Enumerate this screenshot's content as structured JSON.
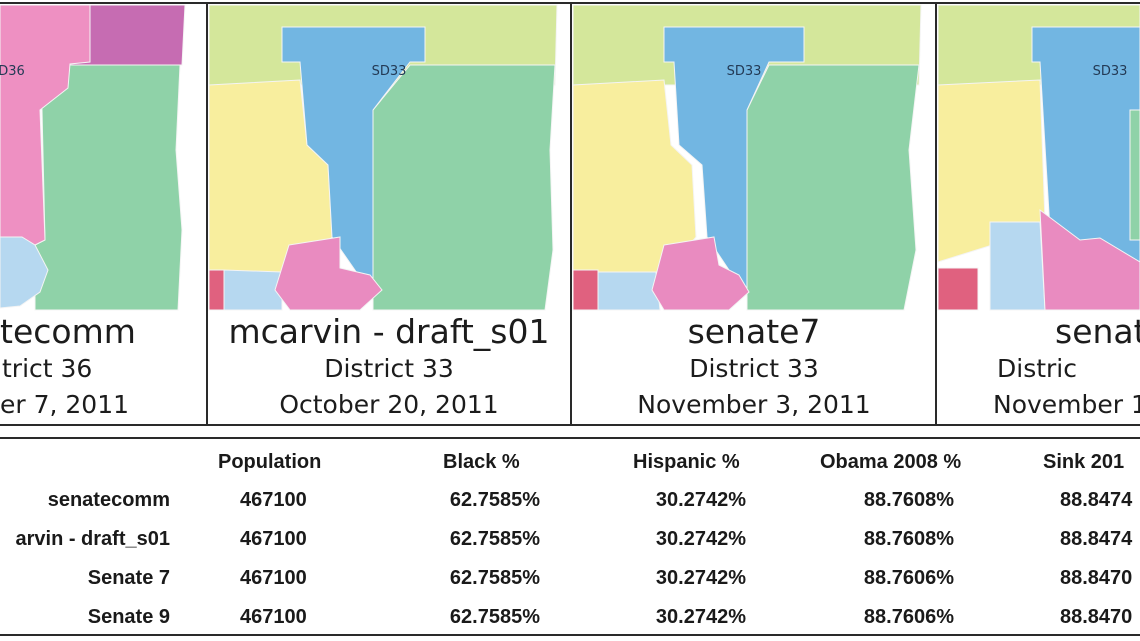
{
  "colors": {
    "light_green": "#d4e79b",
    "blue": "#72b6e2",
    "yellow": "#f8ee9e",
    "green": "#8fd2a8",
    "pink": "#e98bc0",
    "red": "#e0617f",
    "light_blue": "#b6d8f0",
    "purple": "#c66cb2",
    "light_pink": "#ee90c2"
  },
  "panels": [
    {
      "map_label": "SD36",
      "title": "tecomm",
      "district": "trict 36",
      "date": "er 7, 2011"
    },
    {
      "map_label": "SD33",
      "title": "mcarvin - draft_s01",
      "district": "District 33",
      "date": "October 20, 2011"
    },
    {
      "map_label": "SD33",
      "title": "senate7",
      "district": "District 33",
      "date": "November 3, 2011"
    },
    {
      "map_label": "SD33",
      "title": "senat",
      "district": "Distric",
      "date": "November 1"
    }
  ],
  "table": {
    "headers": [
      "Population",
      "Black %",
      "Hispanic %",
      "Obama 2008 %",
      "Sink 201"
    ],
    "rows": [
      {
        "name": "senatecomm",
        "values": [
          "467100",
          "62.7585%",
          "30.2742%",
          "88.7608%",
          "88.8474"
        ]
      },
      {
        "name": "arvin - draft_s01",
        "values": [
          "467100",
          "62.7585%",
          "30.2742%",
          "88.7608%",
          "88.8474"
        ]
      },
      {
        "name": "Senate 7",
        "values": [
          "467100",
          "62.7585%",
          "30.2742%",
          "88.7606%",
          "88.8470"
        ]
      },
      {
        "name": "Senate 9",
        "values": [
          "467100",
          "62.7585%",
          "30.2742%",
          "88.7606%",
          "88.8470"
        ]
      }
    ]
  }
}
